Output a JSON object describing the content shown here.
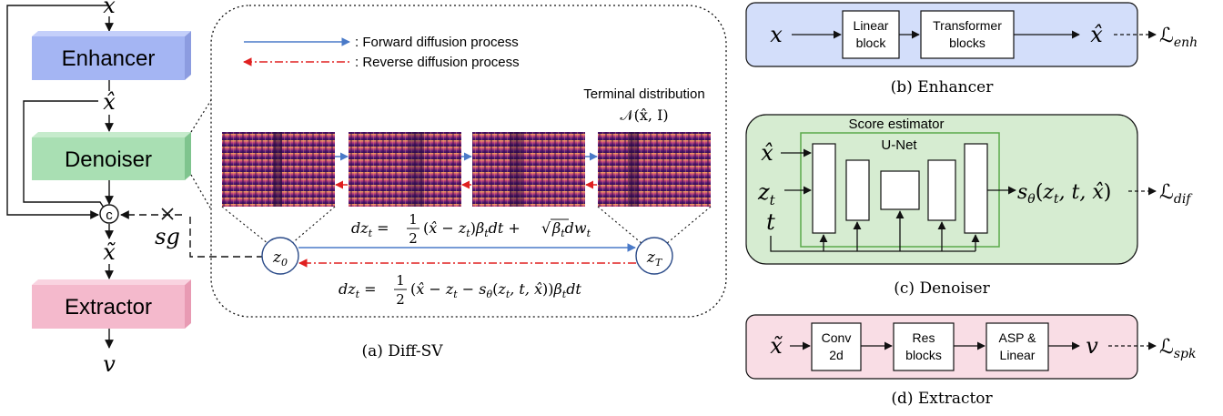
{
  "left": {
    "input": "x",
    "enhancer": "Enhancer",
    "xhat": "x̂",
    "denoiser": "Denoiser",
    "concat": "c",
    "sg": "sg",
    "xtilde": "x̃",
    "extractor": "Extractor",
    "output": "v"
  },
  "diff": {
    "legend_forward": ": Forward diffusion process",
    "legend_reverse": ": Reverse diffusion process",
    "terminal_label": "Terminal distribution",
    "terminal_dist": "𝒩(x̂, I)",
    "forward_eq": "dz_t = ½(x̂ − z_t)β_t dt + √β_t dw_t",
    "reverse_eq": "dz_t = ½(x̂ − z_t − s_θ(z_t, t, x̂))β_t dt",
    "z0": "z0",
    "zT": "zT",
    "caption": "(a) Diff-SV"
  },
  "enhancer_panel": {
    "input": "x",
    "block1": [
      "Linear",
      "block"
    ],
    "block2": [
      "Transformer",
      "blocks"
    ],
    "output": "x̂",
    "loss": "ℒenh",
    "caption": "(b) Enhancer",
    "color": "#d3defa"
  },
  "denoiser_panel": {
    "title": "Score estimator",
    "unet": "U-Net",
    "in1": "x̂",
    "in2": "z_t",
    "in3": "t",
    "output": "sθ(zt, t, x̂)",
    "loss": "ℒdif",
    "caption": "(c) Denoiser",
    "color": "#d6ecd1"
  },
  "extractor_panel": {
    "input": "x̃",
    "block1": [
      "Conv",
      "2d"
    ],
    "block2": [
      "Res",
      "blocks"
    ],
    "block3": [
      "ASP &",
      "Linear"
    ],
    "output": "v",
    "loss": "ℒspk",
    "caption": "(d) Extractor",
    "color": "#f9dde5"
  },
  "colors": {
    "enhancer_block": "#a4b5f3",
    "denoiser_block": "#a9dfb3",
    "extractor_block": "#f4b9cc",
    "forward_arrow": "#4a7ac8",
    "reverse_arrow": "#e02020"
  }
}
